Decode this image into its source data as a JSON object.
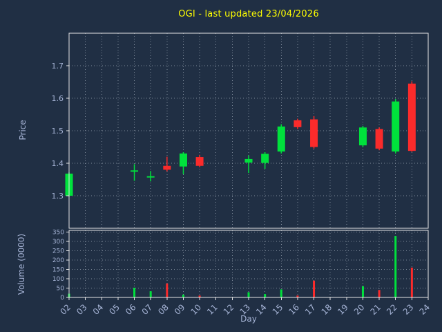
{
  "chart_data": {
    "type": "candlestick",
    "title": "OGI - last updated 23/04/2026",
    "xlabel": "Day",
    "ylabel": "Price",
    "volume_label": "Volume (0000)",
    "xlim": [
      2,
      24
    ],
    "price_ylim": [
      1.2,
      1.8
    ],
    "price_ticks": [
      1.3,
      1.4,
      1.5,
      1.6,
      1.7
    ],
    "volume_ylim": [
      0,
      360
    ],
    "volume_ticks": [
      0,
      50,
      100,
      150,
      200,
      250,
      300,
      350
    ],
    "x_ticks": [
      "02",
      "03",
      "04",
      "05",
      "06",
      "07",
      "08",
      "09",
      "10",
      "11",
      "12",
      "13",
      "14",
      "15",
      "16",
      "17",
      "18",
      "19",
      "20",
      "21",
      "22",
      "23",
      "24"
    ],
    "grid": "dotted",
    "colors": {
      "background": "#202f44",
      "grid": "#c9d4e0",
      "axis": "#e6e6e6",
      "text": "#a6b4d6",
      "title": "#ffff00",
      "up": "#00e13c",
      "down": "#fb2b2b"
    },
    "candles": [
      {
        "day": 2,
        "open": 1.3,
        "high": 1.372,
        "low": 1.297,
        "close": 1.368,
        "volume": 20
      },
      {
        "day": 6,
        "open": 1.374,
        "high": 1.397,
        "low": 1.346,
        "close": 1.378,
        "volume": 52
      },
      {
        "day": 7,
        "open": 1.356,
        "high": 1.376,
        "low": 1.344,
        "close": 1.36,
        "volume": 33
      },
      {
        "day": 8,
        "open": 1.392,
        "high": 1.42,
        "low": 1.375,
        "close": 1.38,
        "volume": 75
      },
      {
        "day": 9,
        "open": 1.39,
        "high": 1.434,
        "low": 1.366,
        "close": 1.43,
        "volume": 15
      },
      {
        "day": 10,
        "open": 1.419,
        "high": 1.426,
        "low": 1.388,
        "close": 1.392,
        "volume": 10
      },
      {
        "day": 13,
        "open": 1.402,
        "high": 1.424,
        "low": 1.37,
        "close": 1.413,
        "volume": 28
      },
      {
        "day": 14,
        "open": 1.401,
        "high": 1.434,
        "low": 1.383,
        "close": 1.429,
        "volume": 18
      },
      {
        "day": 15,
        "open": 1.436,
        "high": 1.52,
        "low": 1.43,
        "close": 1.513,
        "volume": 43
      },
      {
        "day": 16,
        "open": 1.532,
        "high": 1.537,
        "low": 1.505,
        "close": 1.511,
        "volume": 10
      },
      {
        "day": 17,
        "open": 1.535,
        "high": 1.545,
        "low": 1.445,
        "close": 1.45,
        "volume": 90
      },
      {
        "day": 20,
        "open": 1.455,
        "high": 1.515,
        "low": 1.45,
        "close": 1.51,
        "volume": 60
      },
      {
        "day": 21,
        "open": 1.505,
        "high": 1.51,
        "low": 1.44,
        "close": 1.445,
        "volume": 40
      },
      {
        "day": 22,
        "open": 1.436,
        "high": 1.598,
        "low": 1.43,
        "close": 1.59,
        "volume": 330
      },
      {
        "day": 23,
        "open": 1.645,
        "high": 1.652,
        "low": 1.435,
        "close": 1.438,
        "volume": 160
      }
    ]
  }
}
